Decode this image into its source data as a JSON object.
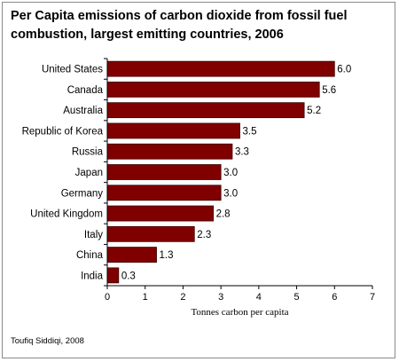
{
  "title": "Per Capita emissions of carbon dioxide from fossil fuel combustion, largest emitting countries, 2006",
  "credit": "Toufiq Siddiqi, 2008",
  "colors": {
    "bar": "#800000",
    "bar_edge": "#3a0000",
    "axis": "#000000"
  },
  "chart_data": {
    "type": "bar",
    "orientation": "horizontal",
    "title": "Per Capita emissions of carbon dioxide from fossil fuel combustion, largest emitting countries, 2006",
    "xlabel": "Tonnes carbon per capita",
    "ylabel": "",
    "xlim": [
      0,
      7
    ],
    "xticks": [
      "0",
      "1",
      "2",
      "3",
      "4",
      "5",
      "6",
      "7"
    ],
    "categories": [
      "United States",
      "Canada",
      "Australia",
      "Republic of Korea",
      "Russia",
      "Japan",
      "Germany",
      "United Kingdom",
      "Italy",
      "China",
      "India"
    ],
    "values": [
      6.0,
      5.6,
      5.2,
      3.5,
      3.3,
      3.0,
      3.0,
      2.8,
      2.3,
      1.3,
      0.3
    ],
    "value_labels": [
      "6.0",
      "5.6",
      "5.2",
      "3.5",
      "3.3",
      "3.0",
      "3.0",
      "2.8",
      "2.3",
      "1.3",
      "0.3"
    ],
    "grid": false,
    "legend": "none"
  }
}
